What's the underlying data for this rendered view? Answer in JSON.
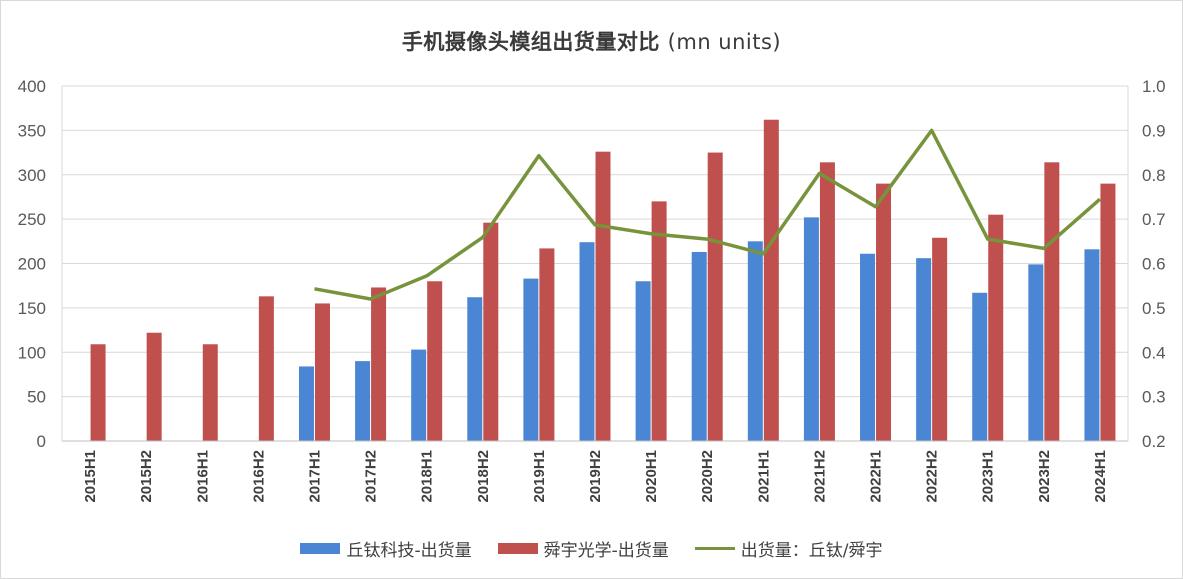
{
  "chart_data": {
    "type": "bar",
    "title": "手机摄像头模组出货量对比",
    "title_unit": "(mn units)",
    "categories": [
      "2015H1",
      "2015H2",
      "2016H1",
      "2016H2",
      "2017H1",
      "2017H2",
      "2018H1",
      "2018H2",
      "2019H1",
      "2019H2",
      "2020H1",
      "2020H2",
      "2021H1",
      "2021H2",
      "2022H1",
      "2022H2",
      "2023H1",
      "2023H2",
      "2024H1"
    ],
    "series": [
      {
        "name": "丘钛科技-出货量",
        "axis": "left",
        "kind": "bar",
        "color": "#4a86d4",
        "values": [
          null,
          null,
          null,
          null,
          84,
          90,
          103,
          162,
          183,
          224,
          180,
          213,
          225,
          252,
          211,
          206,
          167,
          199,
          216
        ]
      },
      {
        "name": "舜宇光学-出货量",
        "axis": "left",
        "kind": "bar",
        "color": "#c0504d",
        "values": [
          109,
          122,
          109,
          163,
          155,
          173,
          180,
          246,
          217,
          326,
          270,
          325,
          362,
          314,
          290,
          229,
          255,
          314,
          290
        ]
      },
      {
        "name": "出货量：丘钛/舜宇",
        "axis": "right",
        "kind": "line",
        "color": "#77933c",
        "values": [
          null,
          null,
          null,
          null,
          0.543,
          0.52,
          0.572,
          0.659,
          0.843,
          0.687,
          0.667,
          0.655,
          0.622,
          0.803,
          0.728,
          0.9,
          0.655,
          0.634,
          0.745
        ]
      }
    ],
    "y_left": {
      "min": 0,
      "max": 400,
      "ticks": [
        0,
        50,
        100,
        150,
        200,
        250,
        300,
        350,
        400
      ]
    },
    "y_right": {
      "min": 0.2,
      "max": 1.0,
      "ticks": [
        "0.2",
        "0.3",
        "0.4",
        "0.5",
        "0.6",
        "0.7",
        "0.8",
        "0.9",
        "1.0"
      ]
    },
    "grid": true,
    "legend_position": "bottom"
  }
}
